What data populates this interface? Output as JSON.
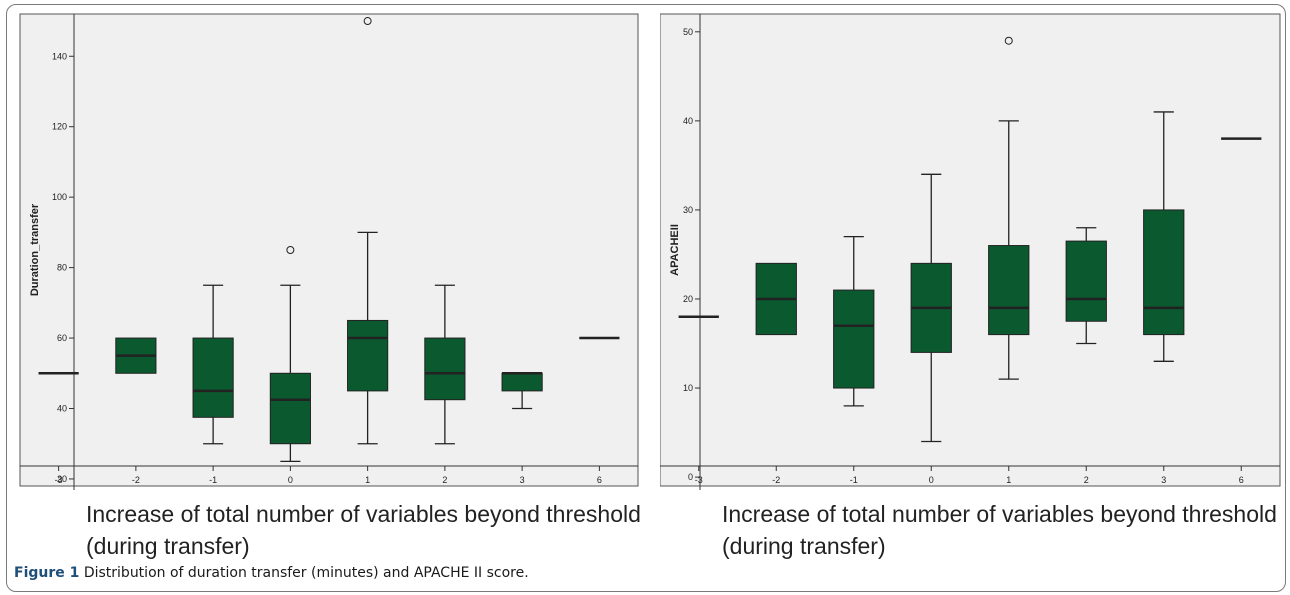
{
  "caption": {
    "label": "Figure 1",
    "text": "Distribution of duration transfer (minutes) and APACHE II score."
  },
  "colors": {
    "box_fill": "#0b5a2f",
    "panel_bg": "#f0f0f0",
    "stroke": "#222222"
  },
  "chart_data": [
    {
      "type": "boxplot",
      "title": "",
      "xlabel": "Increase of total number of variables beyond threshold (during transfer)",
      "ylabel": "Duration_transfer",
      "ylim": [
        18,
        152
      ],
      "yticks": [
        20,
        40,
        60,
        80,
        100,
        120,
        140
      ],
      "categories": [
        "-3",
        "-2",
        "-1",
        "0",
        "1",
        "2",
        "3",
        "6"
      ],
      "boxes": [
        {
          "cat": "-3",
          "min": 50,
          "q1": 50,
          "median": 50,
          "q3": 50,
          "max": 50,
          "outliers": []
        },
        {
          "cat": "-2",
          "min": 50,
          "q1": 50,
          "median": 55,
          "q3": 60,
          "max": 60,
          "outliers": []
        },
        {
          "cat": "-1",
          "min": 30,
          "q1": 37.5,
          "median": 45,
          "q3": 60,
          "max": 75,
          "outliers": []
        },
        {
          "cat": "0",
          "min": 25,
          "q1": 30,
          "median": 42.5,
          "q3": 50,
          "max": 75,
          "outliers": [
            85
          ]
        },
        {
          "cat": "1",
          "min": 30,
          "q1": 45,
          "median": 60,
          "q3": 65,
          "max": 90,
          "outliers": [
            150
          ]
        },
        {
          "cat": "2",
          "min": 30,
          "q1": 42.5,
          "median": 50,
          "q3": 60,
          "max": 75,
          "outliers": []
        },
        {
          "cat": "3",
          "min": 40,
          "q1": 45,
          "median": 50,
          "q3": 50,
          "max": 50,
          "outliers": []
        },
        {
          "cat": "6",
          "min": 60,
          "q1": 60,
          "median": 60,
          "q3": 60,
          "max": 60,
          "outliers": []
        }
      ]
    },
    {
      "type": "boxplot",
      "title": "",
      "xlabel": "Increase of total number of variables beyond threshold (during transfer)",
      "ylabel": "APACHEII",
      "ylim": [
        -1,
        52
      ],
      "yticks": [
        0,
        10,
        20,
        30,
        40,
        50
      ],
      "categories": [
        "-3",
        "-2",
        "-1",
        "0",
        "1",
        "2",
        "3",
        "6"
      ],
      "boxes": [
        {
          "cat": "-3",
          "min": 18,
          "q1": 18,
          "median": 18,
          "q3": 18,
          "max": 18,
          "outliers": []
        },
        {
          "cat": "-2",
          "min": 16,
          "q1": 16,
          "median": 20,
          "q3": 24,
          "max": 24,
          "outliers": []
        },
        {
          "cat": "-1",
          "min": 8,
          "q1": 10,
          "median": 17,
          "q3": 21,
          "max": 27,
          "outliers": []
        },
        {
          "cat": "0",
          "min": 4,
          "q1": 14,
          "median": 19,
          "q3": 24,
          "max": 34,
          "outliers": []
        },
        {
          "cat": "1",
          "min": 11,
          "q1": 16,
          "median": 19,
          "q3": 26,
          "max": 40,
          "outliers": [
            49
          ]
        },
        {
          "cat": "2",
          "min": 15,
          "q1": 17.5,
          "median": 20,
          "q3": 26.5,
          "max": 28,
          "outliers": []
        },
        {
          "cat": "3",
          "min": 13,
          "q1": 16,
          "median": 19,
          "q3": 30,
          "max": 41,
          "outliers": []
        },
        {
          "cat": "6",
          "min": 38,
          "q1": 38,
          "median": 38,
          "q3": 38,
          "max": 38,
          "outliers": []
        }
      ]
    }
  ]
}
